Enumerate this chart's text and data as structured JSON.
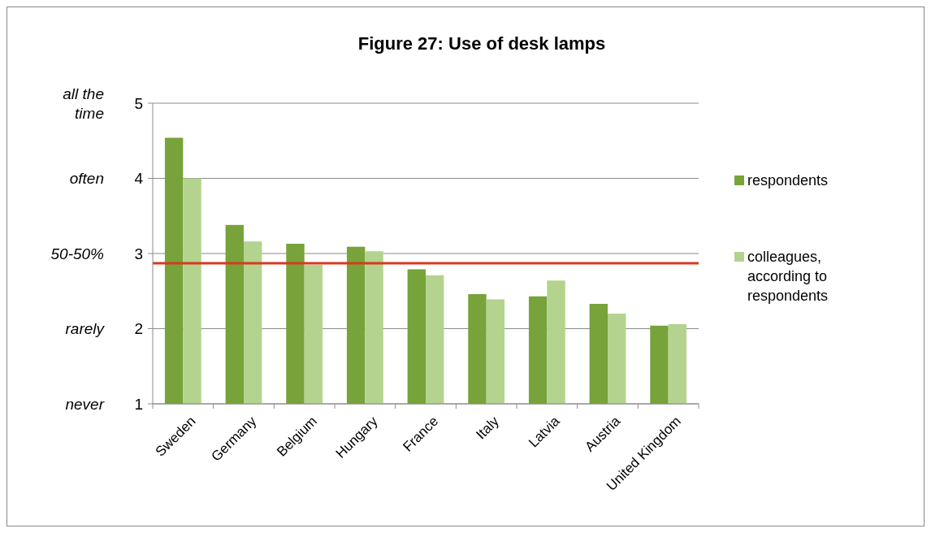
{
  "chart_data": {
    "type": "bar",
    "title": "Figure 27: Use of desk lamps",
    "categories": [
      "Sweden",
      "Germany",
      "Belgium",
      "Hungary",
      "France",
      "Italy",
      "Latvia",
      "Austria",
      "United Kingdom"
    ],
    "series": [
      {
        "name": "respondents",
        "color": "#77a33a",
        "values": [
          4.54,
          3.38,
          3.13,
          3.09,
          2.79,
          2.46,
          2.43,
          2.33,
          2.04
        ]
      },
      {
        "name": "colleagues, according to respondents",
        "color": "#b3d38e",
        "values": [
          4.0,
          3.16,
          2.85,
          3.03,
          2.71,
          2.39,
          2.64,
          2.2,
          2.06
        ]
      }
    ],
    "ylim": [
      1,
      5
    ],
    "yticks": [
      1,
      2,
      3,
      4,
      5
    ],
    "grid": "y",
    "legend": "right",
    "ref_lines": [
      {
        "axis": "y",
        "value": 2.87,
        "color": "#d9381e"
      }
    ],
    "annotations": [
      "all the time",
      "often",
      "50-50%",
      "rarely",
      "never"
    ]
  }
}
